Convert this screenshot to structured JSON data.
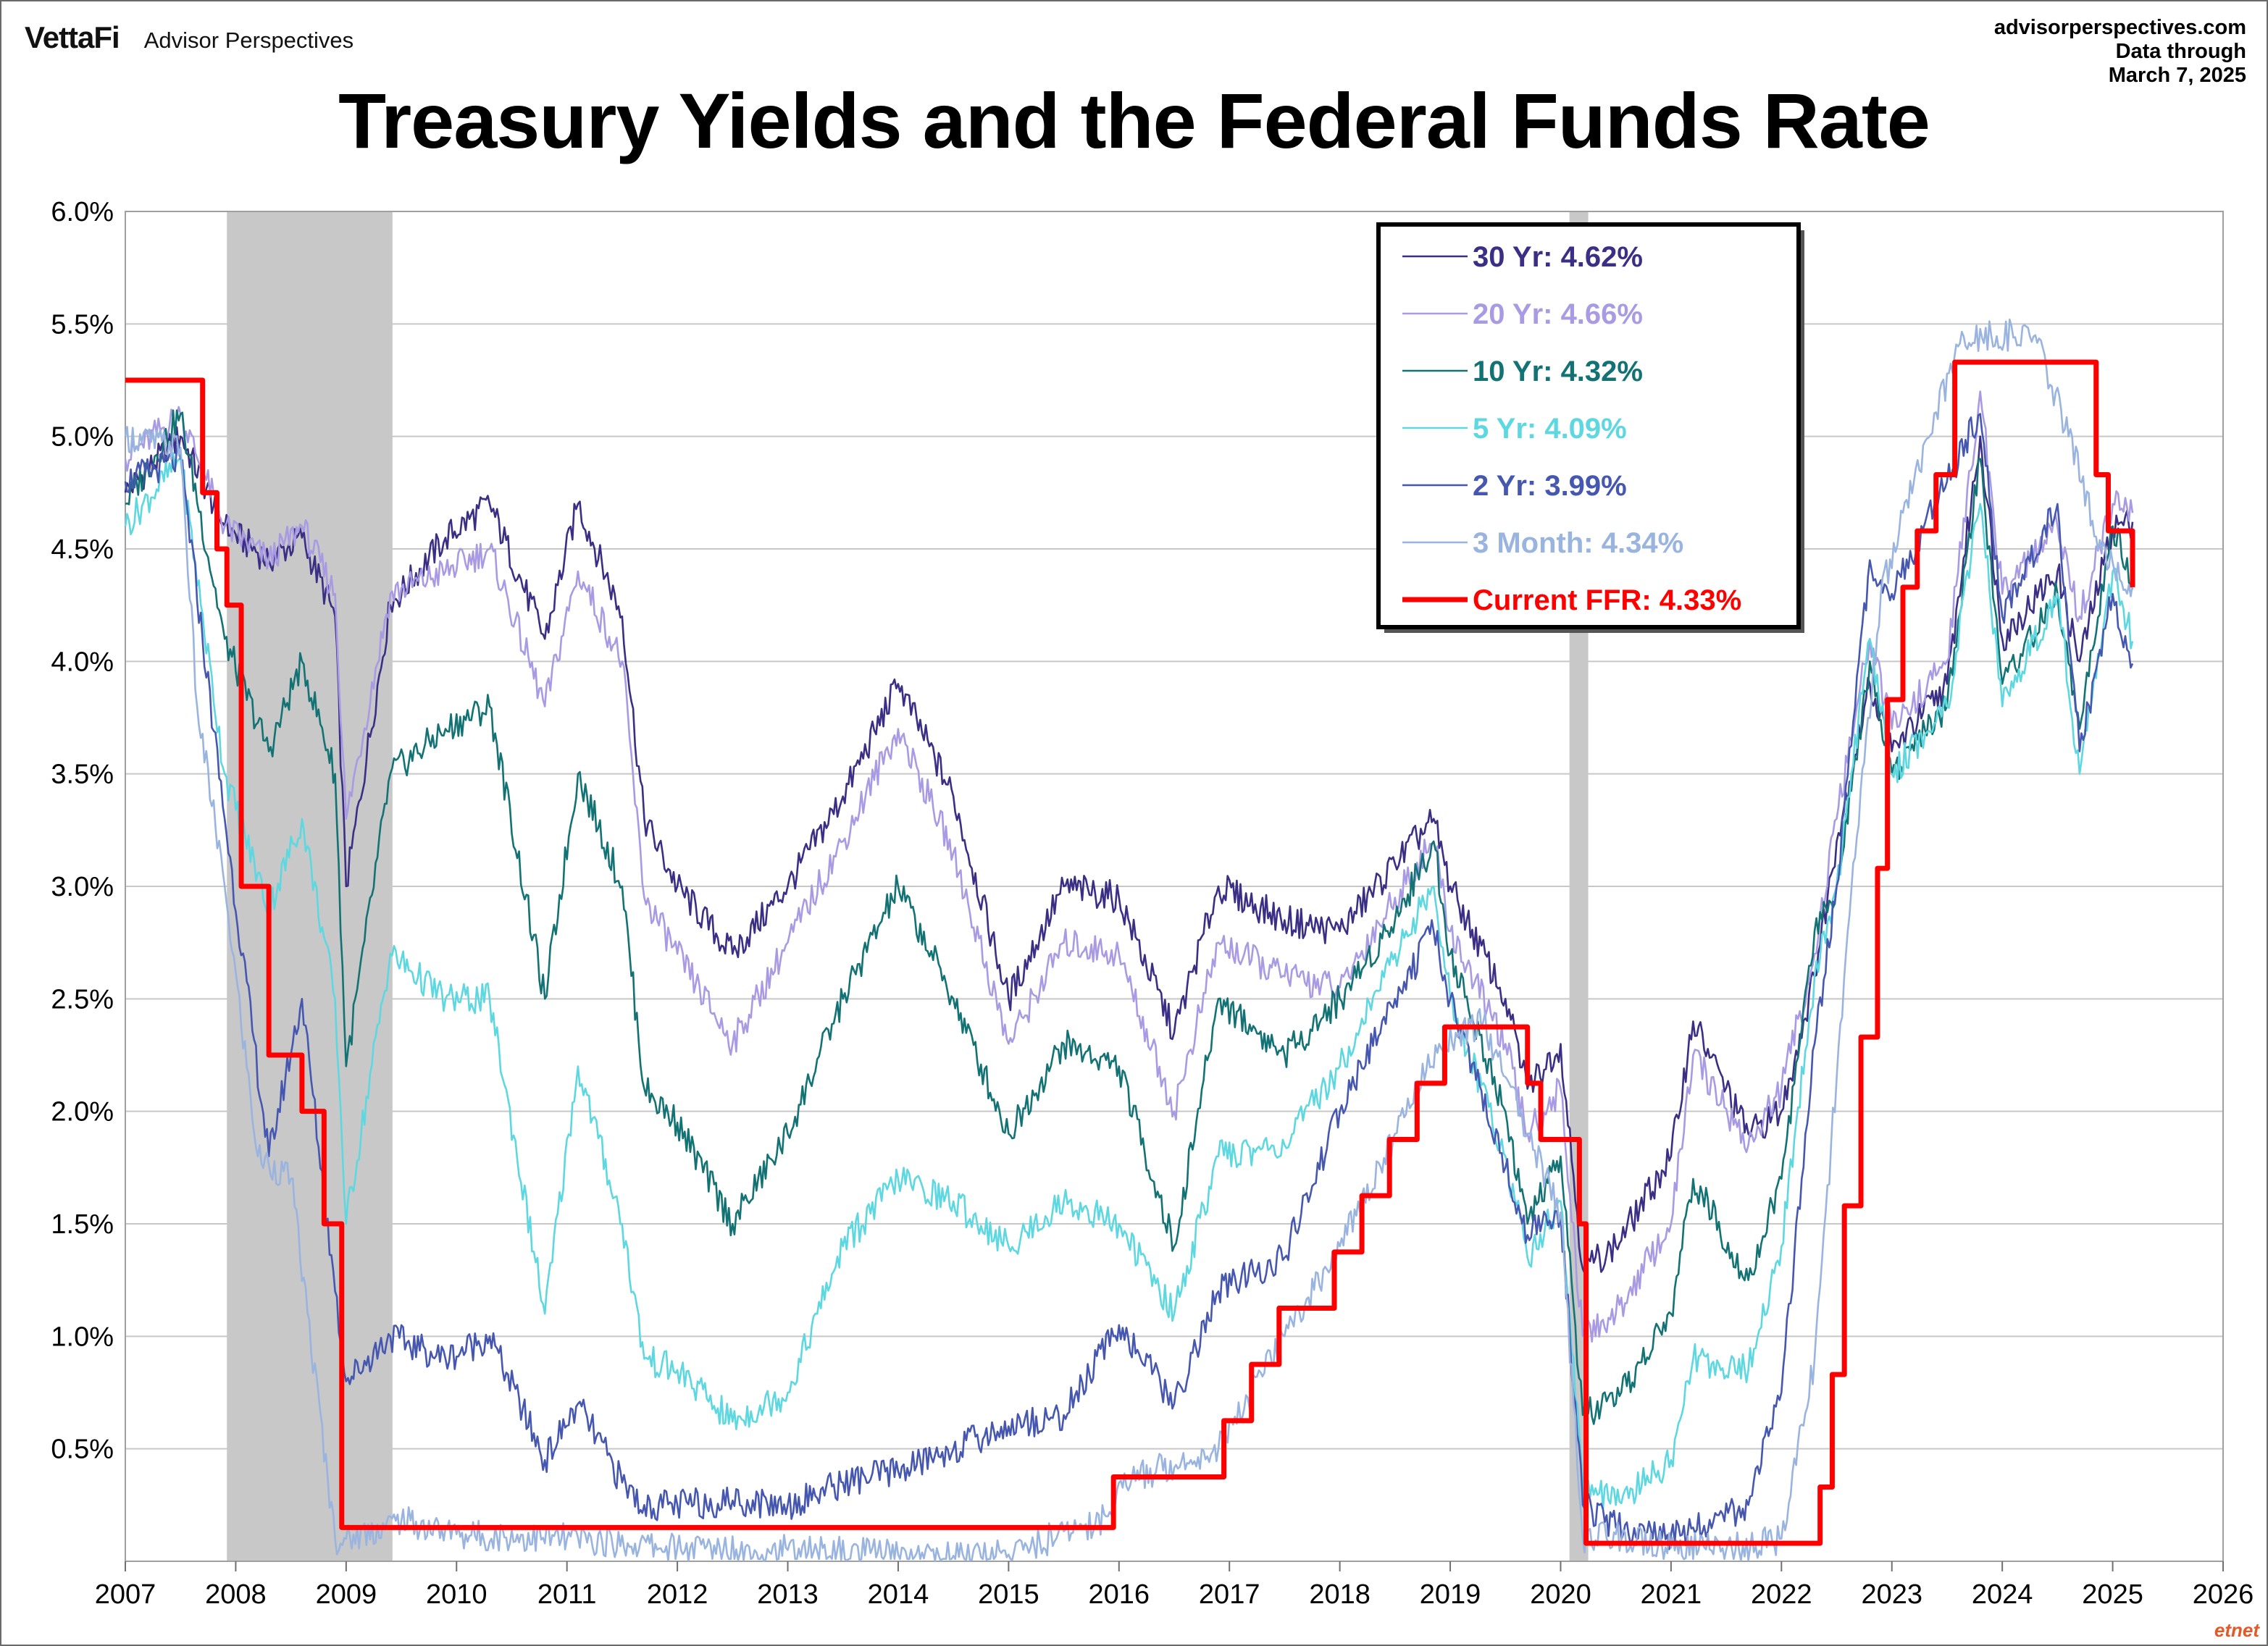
{
  "header": {
    "logo": "VettaFi",
    "brand": "Advisor Perspectives",
    "site": "advisorperspectives.com",
    "data_through_label": "Data through",
    "data_through_date": "March 7, 2025",
    "watermark": "etnet"
  },
  "colors": {
    "y30": "#3a2f85",
    "y20": "#a99be3",
    "y10": "#137374",
    "y5": "#5ed8e0",
    "y2": "#4657b0",
    "m3": "#9ab4e0",
    "ffr": "#ff0000",
    "recession": "#c8c8c8",
    "grid": "#c8c8c8"
  },
  "chart_data": {
    "type": "line",
    "title": "Treasury Yields and the Federal Funds Rate",
    "xlabel": "",
    "ylabel": "",
    "xlim": [
      2007,
      2026
    ],
    "ylim": [
      0,
      6
    ],
    "x_ticks": [
      "2007",
      "2008",
      "2009",
      "2010",
      "2011",
      "2012",
      "2013",
      "2014",
      "2015",
      "2016",
      "2017",
      "2018",
      "2019",
      "2020",
      "2021",
      "2022",
      "2023",
      "2024",
      "2025",
      "2026"
    ],
    "y_ticks": [
      "6.0%",
      "5.5%",
      "5.0%",
      "4.5%",
      "4.0%",
      "3.5%",
      "3.0%",
      "2.5%",
      "2.0%",
      "1.5%",
      "1.0%",
      "0.5%"
    ],
    "grid": true,
    "legend_position": "top-right",
    "recessions": [
      [
        2007.92,
        2009.42
      ],
      [
        2020.08,
        2020.25
      ]
    ],
    "series": [
      {
        "name": "30 Yr",
        "legend": "30 Yr: 4.62%",
        "color_key": "y30",
        "x": [
          2007.0,
          2007.5,
          2007.9,
          2008.3,
          2008.6,
          2008.9,
          2009.0,
          2009.4,
          2009.9,
          2010.3,
          2010.8,
          2011.1,
          2011.5,
          2011.7,
          2012.0,
          2012.5,
          2013.0,
          2013.5,
          2014.0,
          2014.5,
          2015.0,
          2015.5,
          2016.0,
          2016.5,
          2016.9,
          2017.5,
          2018.0,
          2018.5,
          2018.85,
          2019.0,
          2019.5,
          2019.7,
          2020.0,
          2020.2,
          2020.5,
          2021.0,
          2021.2,
          2021.7,
          2022.0,
          2022.3,
          2022.5,
          2022.8,
          2023.0,
          2023.5,
          2023.8,
          2024.0,
          2024.5,
          2024.7,
          2025.0,
          2025.18
        ],
        "y": [
          4.75,
          5.0,
          4.6,
          4.45,
          4.55,
          4.2,
          3.0,
          4.25,
          4.55,
          4.7,
          4.1,
          4.7,
          4.2,
          3.3,
          3.0,
          2.7,
          3.0,
          3.4,
          3.9,
          3.4,
          2.5,
          3.0,
          2.95,
          2.35,
          3.0,
          2.85,
          2.8,
          3.1,
          3.3,
          3.0,
          2.5,
          2.1,
          2.3,
          1.3,
          1.4,
          1.8,
          2.4,
          1.9,
          2.0,
          2.6,
          3.2,
          3.9,
          3.6,
          3.9,
          5.0,
          4.1,
          4.4,
          4.0,
          4.6,
          4.62
        ]
      },
      {
        "name": "20 Yr",
        "legend": "20 Yr: 4.66%",
        "color_key": "y20",
        "x": [
          2007.0,
          2007.5,
          2007.9,
          2008.3,
          2008.6,
          2008.9,
          2009.0,
          2009.4,
          2009.9,
          2010.3,
          2010.8,
          2011.1,
          2011.5,
          2011.7,
          2012.0,
          2012.5,
          2013.0,
          2013.5,
          2014.0,
          2014.5,
          2015.0,
          2015.5,
          2016.0,
          2016.5,
          2016.9,
          2017.5,
          2018.0,
          2018.5,
          2018.85,
          2019.0,
          2019.5,
          2019.7,
          2020.0,
          2020.2,
          2020.5,
          2021.0,
          2021.2,
          2021.7,
          2022.0,
          2022.3,
          2022.5,
          2022.8,
          2023.0,
          2023.5,
          2023.8,
          2024.0,
          2024.5,
          2024.7,
          2025.0,
          2025.18
        ],
        "y": [
          4.9,
          5.1,
          4.6,
          4.45,
          4.6,
          4.3,
          3.3,
          4.3,
          4.4,
          4.5,
          3.8,
          4.4,
          4.0,
          2.95,
          2.7,
          2.3,
          2.75,
          3.2,
          3.7,
          3.15,
          2.3,
          2.75,
          2.7,
          2.0,
          2.75,
          2.6,
          2.55,
          2.95,
          3.2,
          2.8,
          2.3,
          1.9,
          2.1,
          1.0,
          1.1,
          1.5,
          2.25,
          1.85,
          2.1,
          2.7,
          3.3,
          4.1,
          3.7,
          4.0,
          5.2,
          4.3,
          4.6,
          4.2,
          4.7,
          4.66
        ]
      },
      {
        "name": "10 Yr",
        "legend": "10 Yr: 4.32%",
        "color_key": "y10",
        "x": [
          2007.0,
          2007.5,
          2007.9,
          2008.3,
          2008.6,
          2008.9,
          2009.0,
          2009.4,
          2009.9,
          2010.3,
          2010.8,
          2011.1,
          2011.5,
          2011.7,
          2012.0,
          2012.5,
          2013.0,
          2013.5,
          2014.0,
          2014.5,
          2015.0,
          2015.5,
          2016.0,
          2016.5,
          2016.9,
          2017.5,
          2018.0,
          2018.5,
          2018.85,
          2019.0,
          2019.5,
          2019.7,
          2020.0,
          2020.2,
          2020.5,
          2021.0,
          2021.2,
          2021.7,
          2022.0,
          2022.3,
          2022.5,
          2022.8,
          2023.0,
          2023.5,
          2023.8,
          2024.0,
          2024.5,
          2024.7,
          2025.0,
          2025.18
        ],
        "y": [
          4.7,
          5.1,
          4.1,
          3.6,
          4.0,
          3.5,
          2.2,
          3.5,
          3.7,
          3.8,
          2.5,
          3.5,
          3.0,
          2.1,
          1.95,
          1.5,
          1.9,
          2.5,
          3.0,
          2.5,
          1.9,
          2.3,
          2.2,
          1.4,
          2.5,
          2.25,
          2.5,
          2.85,
          3.2,
          2.7,
          2.0,
          1.5,
          1.8,
          0.65,
          0.7,
          1.1,
          1.7,
          1.25,
          1.7,
          2.8,
          3.0,
          4.0,
          3.5,
          3.8,
          4.9,
          3.9,
          4.3,
          3.7,
          4.6,
          4.32
        ]
      },
      {
        "name": "5 Yr",
        "legend": "5 Yr: 4.09%",
        "color_key": "y5",
        "x": [
          2007.0,
          2007.5,
          2007.9,
          2008.3,
          2008.6,
          2008.9,
          2009.0,
          2009.4,
          2009.9,
          2010.3,
          2010.8,
          2011.1,
          2011.5,
          2011.7,
          2012.0,
          2012.5,
          2013.0,
          2013.5,
          2014.0,
          2014.5,
          2015.0,
          2015.5,
          2016.0,
          2016.5,
          2016.9,
          2017.5,
          2018.0,
          2018.5,
          2018.85,
          2019.0,
          2019.5,
          2019.7,
          2020.0,
          2020.2,
          2020.5,
          2021.0,
          2021.2,
          2021.7,
          2022.0,
          2022.3,
          2022.5,
          2022.8,
          2023.0,
          2023.5,
          2023.8,
          2024.0,
          2024.5,
          2024.7,
          2025.0,
          2025.18
        ],
        "y": [
          4.6,
          4.9,
          3.5,
          2.9,
          3.3,
          2.5,
          1.5,
          2.7,
          2.5,
          2.5,
          1.1,
          2.2,
          1.5,
          0.9,
          0.85,
          0.62,
          0.75,
          1.4,
          1.7,
          1.6,
          1.4,
          1.6,
          1.5,
          1.1,
          1.8,
          1.85,
          2.2,
          2.7,
          3.0,
          2.5,
          1.8,
          1.35,
          1.6,
          0.35,
          0.25,
          0.45,
          0.9,
          0.85,
          1.4,
          2.6,
          3.0,
          4.1,
          3.5,
          3.8,
          4.7,
          3.8,
          4.3,
          3.5,
          4.4,
          4.09
        ]
      },
      {
        "name": "2 Yr",
        "legend": "2 Yr: 3.99%",
        "color_key": "y2",
        "x": [
          2007.0,
          2007.5,
          2007.9,
          2008.3,
          2008.6,
          2008.9,
          2009.0,
          2009.4,
          2009.9,
          2010.3,
          2010.8,
          2011.1,
          2011.5,
          2011.7,
          2012.0,
          2012.5,
          2013.0,
          2013.5,
          2014.0,
          2014.5,
          2015.0,
          2015.5,
          2016.0,
          2016.5,
          2016.9,
          2017.5,
          2018.0,
          2018.5,
          2018.85,
          2019.0,
          2019.5,
          2019.7,
          2020.0,
          2020.2,
          2020.5,
          2021.0,
          2021.2,
          2021.7,
          2022.0,
          2022.3,
          2022.5,
          2022.8,
          2023.0,
          2023.5,
          2023.8,
          2024.0,
          2024.5,
          2024.7,
          2025.0,
          2025.18
        ],
        "y": [
          4.8,
          4.9,
          3.3,
          1.8,
          2.5,
          1.2,
          0.8,
          1.0,
          0.9,
          1.0,
          0.45,
          0.7,
          0.35,
          0.25,
          0.25,
          0.27,
          0.25,
          0.35,
          0.4,
          0.5,
          0.6,
          0.65,
          1.05,
          0.7,
          1.2,
          1.35,
          2.0,
          2.5,
          2.8,
          2.5,
          1.75,
          1.45,
          1.55,
          0.25,
          0.15,
          0.12,
          0.15,
          0.25,
          0.75,
          2.3,
          3.0,
          4.45,
          4.3,
          4.8,
          5.1,
          4.2,
          4.7,
          3.6,
          4.3,
          3.99
        ]
      },
      {
        "name": "3 Month",
        "legend": "3 Month: 4.34%",
        "color_key": "m3",
        "x": [
          2007.0,
          2007.5,
          2007.65,
          2007.9,
          2008.2,
          2008.5,
          2008.9,
          2009.0,
          2009.5,
          2010.0,
          2011.0,
          2012.0,
          2013.0,
          2014.0,
          2015.0,
          2015.9,
          2016.0,
          2016.9,
          2017.5,
          2018.0,
          2018.5,
          2018.9,
          2019.3,
          2019.7,
          2020.0,
          2020.2,
          2020.5,
          2021.0,
          2021.5,
          2022.0,
          2022.3,
          2022.6,
          2022.9,
          2023.2,
          2023.6,
          2023.9,
          2024.3,
          2024.6,
          2024.9,
          2025.18
        ],
        "y": [
          5.0,
          4.95,
          3.8,
          3.0,
          1.8,
          1.7,
          0.1,
          0.1,
          0.18,
          0.12,
          0.1,
          0.06,
          0.05,
          0.03,
          0.03,
          0.2,
          0.35,
          0.5,
          1.0,
          1.4,
          1.9,
          2.3,
          2.4,
          1.9,
          1.55,
          0.1,
          0.12,
          0.06,
          0.05,
          0.1,
          0.9,
          2.8,
          4.3,
          4.8,
          5.4,
          5.45,
          5.45,
          5.0,
          4.5,
          4.34
        ]
      },
      {
        "name": "Current FFR",
        "legend": "Current FFR: 4.33%",
        "color_key": "ffr",
        "step": true,
        "x": [
          2007.0,
          2007.7,
          2007.83,
          2007.92,
          2008.05,
          2008.3,
          2008.6,
          2008.8,
          2008.96,
          2015.95,
          2016.95,
          2017.2,
          2017.45,
          2017.95,
          2018.2,
          2018.45,
          2018.7,
          2018.95,
          2019.55,
          2019.7,
          2019.82,
          2020.17,
          2020.23,
          2022.2,
          2022.35,
          2022.46,
          2022.57,
          2022.72,
          2022.87,
          2022.96,
          2023.1,
          2023.23,
          2023.4,
          2023.57,
          2024.7,
          2024.85,
          2024.96,
          2025.18
        ],
        "y": [
          5.25,
          4.75,
          4.5,
          4.25,
          3.0,
          2.25,
          2.0,
          1.5,
          0.15,
          0.375,
          0.625,
          0.875,
          1.125,
          1.375,
          1.625,
          1.875,
          2.125,
          2.375,
          2.375,
          2.125,
          1.875,
          1.5,
          0.08,
          0.08,
          0.33,
          0.83,
          1.58,
          2.33,
          3.08,
          3.83,
          4.33,
          4.58,
          4.83,
          5.33,
          5.33,
          4.83,
          4.58,
          4.33
        ]
      }
    ]
  }
}
